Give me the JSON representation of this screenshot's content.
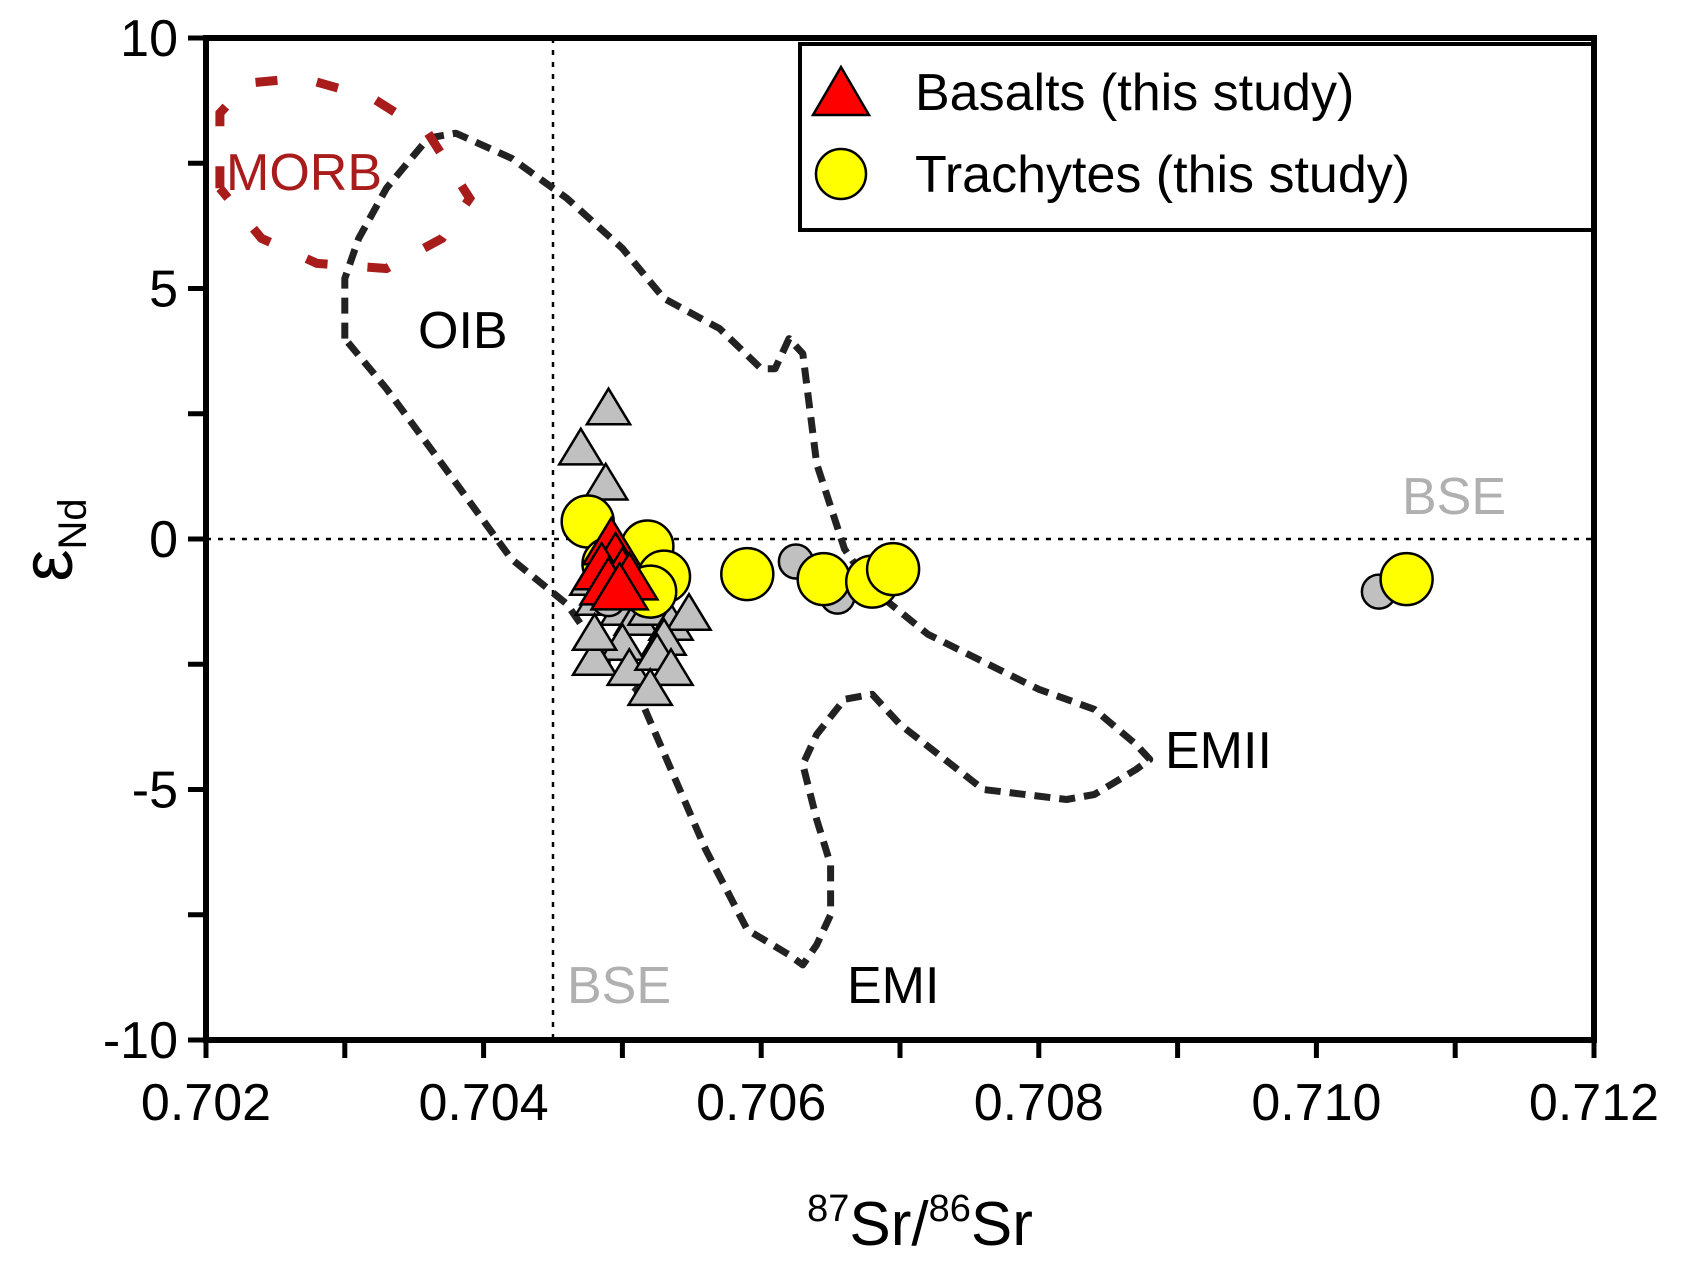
{
  "chart_data": {
    "type": "scatter",
    "xlabel": {
      "sup1": "87",
      "base1": "Sr/",
      "sup2": "86",
      "base2": "Sr"
    },
    "ylabel": {
      "base": "ε",
      "sub": "Nd"
    },
    "xlim": [
      0.702,
      0.712
    ],
    "ylim": [
      -10,
      10
    ],
    "x_ticks": [
      0.702,
      0.704,
      0.706,
      0.708,
      0.71,
      0.712
    ],
    "x_tick_labels": [
      "0.702",
      "0.704",
      "0.706",
      "0.708",
      "0.710",
      "0.712"
    ],
    "y_ticks": [
      -10,
      -5,
      0,
      5,
      10
    ],
    "y_tick_labels": [
      "-10",
      "-5",
      "0",
      "5",
      "10"
    ],
    "grid": false,
    "reference_lines": [
      {
        "axis": "x",
        "value": 0.7045,
        "label": "BSE"
      },
      {
        "axis": "y",
        "value": 0,
        "label": "BSE"
      }
    ],
    "region_labels": {
      "morb": "MORB",
      "oib": "OIB",
      "emi": "EMI",
      "emii": "EMII"
    },
    "legend": {
      "position": "top-right",
      "entries": [
        "Basalts (this study)",
        "Trachytes (this study)"
      ]
    },
    "colors": {
      "basalt": "#ff0000",
      "trachyte": "#ffff00",
      "literature": "#c0c0c0",
      "morb": "#a81c1c",
      "field_outline": "#222222",
      "bse": "#b0b0b0"
    },
    "regions": [
      {
        "name": "OIB",
        "style": "dashed",
        "points": [
          [
            0.703,
            4.0
          ],
          [
            0.703,
            5.2
          ],
          [
            0.7031,
            6.0
          ],
          [
            0.7033,
            7.0
          ],
          [
            0.7036,
            8.0
          ],
          [
            0.7038,
            8.1
          ],
          [
            0.7042,
            7.6
          ],
          [
            0.7046,
            6.8
          ],
          [
            0.705,
            5.8
          ],
          [
            0.7053,
            4.8
          ],
          [
            0.7057,
            4.2
          ],
          [
            0.706,
            3.4
          ],
          [
            0.7061,
            3.4
          ],
          [
            0.7062,
            4.0
          ],
          [
            0.7063,
            3.7
          ],
          [
            0.7064,
            1.5
          ],
          [
            0.7066,
            -0.2
          ],
          [
            0.7068,
            -1.0
          ],
          [
            0.7072,
            -1.9
          ],
          [
            0.708,
            -3.0
          ],
          [
            0.7084,
            -3.4
          ],
          [
            0.7087,
            -4.1
          ],
          [
            0.7088,
            -4.4
          ],
          [
            0.7087,
            -4.6
          ],
          [
            0.7084,
            -5.1
          ],
          [
            0.7082,
            -5.2
          ],
          [
            0.7076,
            -5.0
          ],
          [
            0.707,
            -3.7
          ],
          [
            0.7068,
            -3.1
          ],
          [
            0.7066,
            -3.2
          ],
          [
            0.7064,
            -3.9
          ],
          [
            0.7063,
            -4.5
          ],
          [
            0.7064,
            -5.6
          ],
          [
            0.7065,
            -6.5
          ],
          [
            0.7065,
            -7.5
          ],
          [
            0.7064,
            -8.1
          ],
          [
            0.7063,
            -8.5
          ],
          [
            0.7062,
            -8.3
          ],
          [
            0.7059,
            -7.8
          ],
          [
            0.7056,
            -6.2
          ],
          [
            0.7051,
            -3.0
          ],
          [
            0.7049,
            -2.5
          ],
          [
            0.7046,
            -1.3
          ],
          [
            0.7042,
            -0.4
          ],
          [
            0.7037,
            1.5
          ],
          [
            0.7033,
            3.0
          ],
          [
            0.703,
            4.0
          ]
        ]
      },
      {
        "name": "MORB",
        "style": "dashed",
        "points": [
          [
            0.7021,
            7.0
          ],
          [
            0.7021,
            8.5
          ],
          [
            0.7023,
            9.1
          ],
          [
            0.7027,
            9.2
          ],
          [
            0.7032,
            8.8
          ],
          [
            0.7036,
            8.1
          ],
          [
            0.7039,
            6.8
          ],
          [
            0.7037,
            6.0
          ],
          [
            0.7033,
            5.4
          ],
          [
            0.7028,
            5.5
          ],
          [
            0.7024,
            6.0
          ],
          [
            0.7021,
            7.0
          ]
        ]
      }
    ],
    "series": [
      {
        "name": "Basalts (this study)",
        "marker": "triangle",
        "points": [
          [
            0.70492,
            -0.1
          ],
          [
            0.70495,
            -0.4
          ],
          [
            0.70485,
            -0.6
          ],
          [
            0.705,
            -0.7
          ],
          [
            0.7049,
            -0.9
          ],
          [
            0.70505,
            -0.8
          ],
          [
            0.70498,
            -1.0
          ]
        ]
      },
      {
        "name": "Trachytes (this study)",
        "marker": "circle",
        "points": [
          [
            0.70475,
            0.35
          ],
          [
            0.7049,
            -0.5
          ],
          [
            0.7051,
            -0.55
          ],
          [
            0.70518,
            -0.15
          ],
          [
            0.7053,
            -0.75
          ],
          [
            0.7052,
            -1.05
          ],
          [
            0.7059,
            -0.7
          ],
          [
            0.70645,
            -0.8
          ],
          [
            0.7068,
            -0.85
          ],
          [
            0.70695,
            -0.6
          ],
          [
            0.71065,
            -0.8
          ]
        ]
      },
      {
        "name": "",
        "marker": "triangle",
        "literature": true,
        "points": [
          [
            0.7049,
            2.6
          ],
          [
            0.7047,
            1.8
          ],
          [
            0.70488,
            1.1
          ],
          [
            0.70475,
            0.4
          ],
          [
            0.70478,
            -0.8
          ],
          [
            0.70482,
            -1.2
          ],
          [
            0.705,
            -1.4
          ],
          [
            0.7051,
            -1.6
          ],
          [
            0.7052,
            -1.4
          ],
          [
            0.70535,
            -1.7
          ],
          [
            0.70548,
            -1.5
          ],
          [
            0.7053,
            -2.0
          ],
          [
            0.705,
            -2.1
          ],
          [
            0.7048,
            -2.4
          ],
          [
            0.70505,
            -2.6
          ],
          [
            0.70525,
            -2.3
          ],
          [
            0.70535,
            -2.6
          ],
          [
            0.7052,
            -3.0
          ],
          [
            0.7048,
            -1.9
          ]
        ]
      },
      {
        "name": "",
        "marker": "circle",
        "literature": true,
        "points": [
          [
            0.7049,
            -1.2
          ],
          [
            0.70505,
            -1.0
          ],
          [
            0.70625,
            -0.45
          ],
          [
            0.70655,
            -1.15
          ],
          [
            0.71045,
            -1.05
          ]
        ]
      }
    ]
  }
}
